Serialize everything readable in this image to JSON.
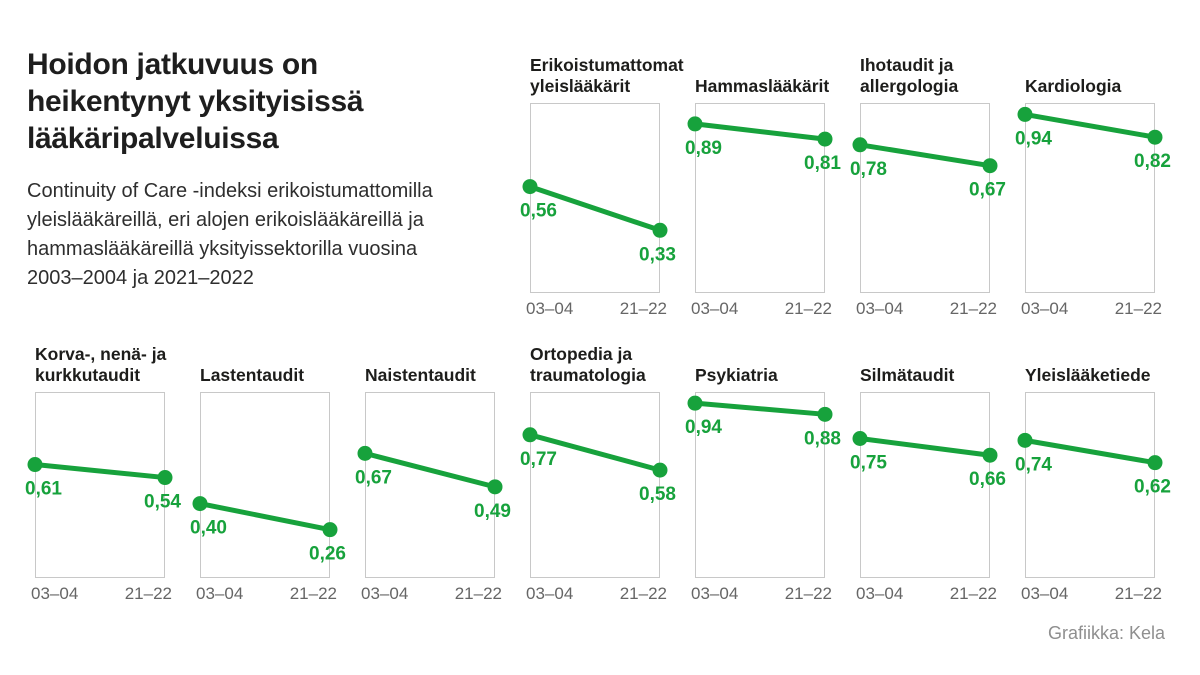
{
  "header": {
    "title_lines": [
      "Hoidon jatkuvuus on",
      "heikentynyt yksityisissä",
      "lääkäripalveluissa"
    ],
    "subtitle_lines": [
      "Continuity of Care -indeksi erikoistumattomilla",
      "yleislääkäreillä, eri alojen erikoislääkäreillä ja",
      "hammaslääkäreillä yksityissektorilla vuosina",
      "2003–2004 ja 2021–2022"
    ]
  },
  "footer": {
    "credit": "Grafiikka: Kela"
  },
  "colors": {
    "line_green": "#17a23c",
    "panel_border": "#c8c8c8",
    "axis_text": "#666666",
    "title_text": "#1d1d1b",
    "credit_text": "#8f8f8f"
  },
  "chart_data": {
    "type": "line",
    "categories": [
      "03–04",
      "21–22"
    ],
    "ylim": [
      0,
      1
    ],
    "grid": false,
    "legend": "none",
    "panels": [
      {
        "row": "top",
        "title_lines": [
          "Erikoistumattomat",
          "yleislääkärit"
        ],
        "values": [
          0.56,
          0.33
        ],
        "value_labels": [
          "0,56",
          "0,33"
        ]
      },
      {
        "row": "top",
        "title_lines": [
          "Hammaslääkärit"
        ],
        "values": [
          0.89,
          0.81
        ],
        "value_labels": [
          "0,89",
          "0,81"
        ]
      },
      {
        "row": "top",
        "title_lines": [
          "Ihotaudit ja",
          "allergologia"
        ],
        "values": [
          0.78,
          0.67
        ],
        "value_labels": [
          "0,78",
          "0,67"
        ]
      },
      {
        "row": "top",
        "title_lines": [
          "Kardiologia"
        ],
        "values": [
          0.94,
          0.82
        ],
        "value_labels": [
          "0,94",
          "0,82"
        ]
      },
      {
        "row": "bottom",
        "title_lines": [
          "Korva-, nenä- ja",
          "kurkkutaudit"
        ],
        "values": [
          0.61,
          0.54
        ],
        "value_labels": [
          "0,61",
          "0,54"
        ]
      },
      {
        "row": "bottom",
        "title_lines": [
          "Lastentaudit"
        ],
        "values": [
          0.4,
          0.26
        ],
        "value_labels": [
          "0,40",
          "0,26"
        ]
      },
      {
        "row": "bottom",
        "title_lines": [
          "Naistentaudit"
        ],
        "values": [
          0.67,
          0.49
        ],
        "value_labels": [
          "0,67",
          "0,49"
        ]
      },
      {
        "row": "bottom",
        "title_lines": [
          "Ortopedia ja",
          "traumatologia"
        ],
        "values": [
          0.77,
          0.58
        ],
        "value_labels": [
          "0,77",
          "0,58"
        ]
      },
      {
        "row": "bottom",
        "title_lines": [
          "Psykiatria"
        ],
        "values": [
          0.94,
          0.88
        ],
        "value_labels": [
          "0,94",
          "0,88"
        ]
      },
      {
        "row": "bottom",
        "title_lines": [
          "Silmätaudit"
        ],
        "values": [
          0.75,
          0.66
        ],
        "value_labels": [
          "0,75",
          "0,66"
        ]
      },
      {
        "row": "bottom",
        "title_lines": [
          "Yleislääketiede"
        ],
        "values": [
          0.74,
          0.62
        ],
        "value_labels": [
          "0,74",
          "0,62"
        ]
      }
    ]
  }
}
